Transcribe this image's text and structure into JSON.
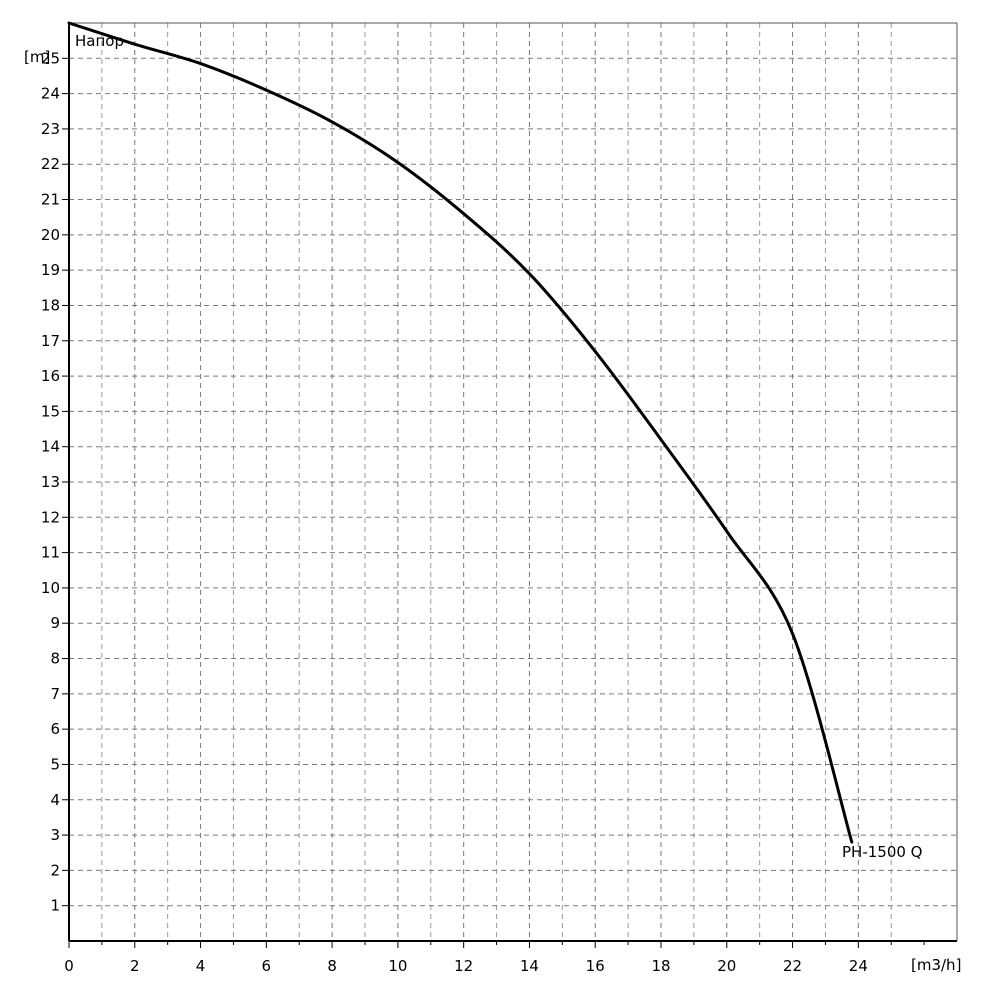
{
  "chart_data": {
    "type": "line",
    "title": "",
    "xlabel": "[m3/h]",
    "ylabel": "[m]",
    "corner_label": "Напор",
    "xlim": [
      0,
      27
    ],
    "ylim": [
      0,
      26
    ],
    "x_ticks": [
      0,
      2,
      4,
      6,
      8,
      10,
      12,
      14,
      16,
      18,
      20,
      22,
      24
    ],
    "y_ticks": [
      1,
      2,
      3,
      4,
      5,
      6,
      7,
      8,
      9,
      10,
      11,
      12,
      13,
      14,
      15,
      16,
      17,
      18,
      19,
      20,
      21,
      22,
      23,
      24,
      25
    ],
    "grid": true,
    "series": [
      {
        "name": "PH-1500 Q",
        "x": [
          0,
          2,
          4,
          6,
          8,
          10,
          12,
          14,
          16,
          18,
          20,
          22,
          23.8
        ],
        "y": [
          26.0,
          25.4,
          24.85,
          24.1,
          23.2,
          22.05,
          20.6,
          18.9,
          16.7,
          14.2,
          11.6,
          8.7,
          2.8
        ]
      }
    ]
  }
}
